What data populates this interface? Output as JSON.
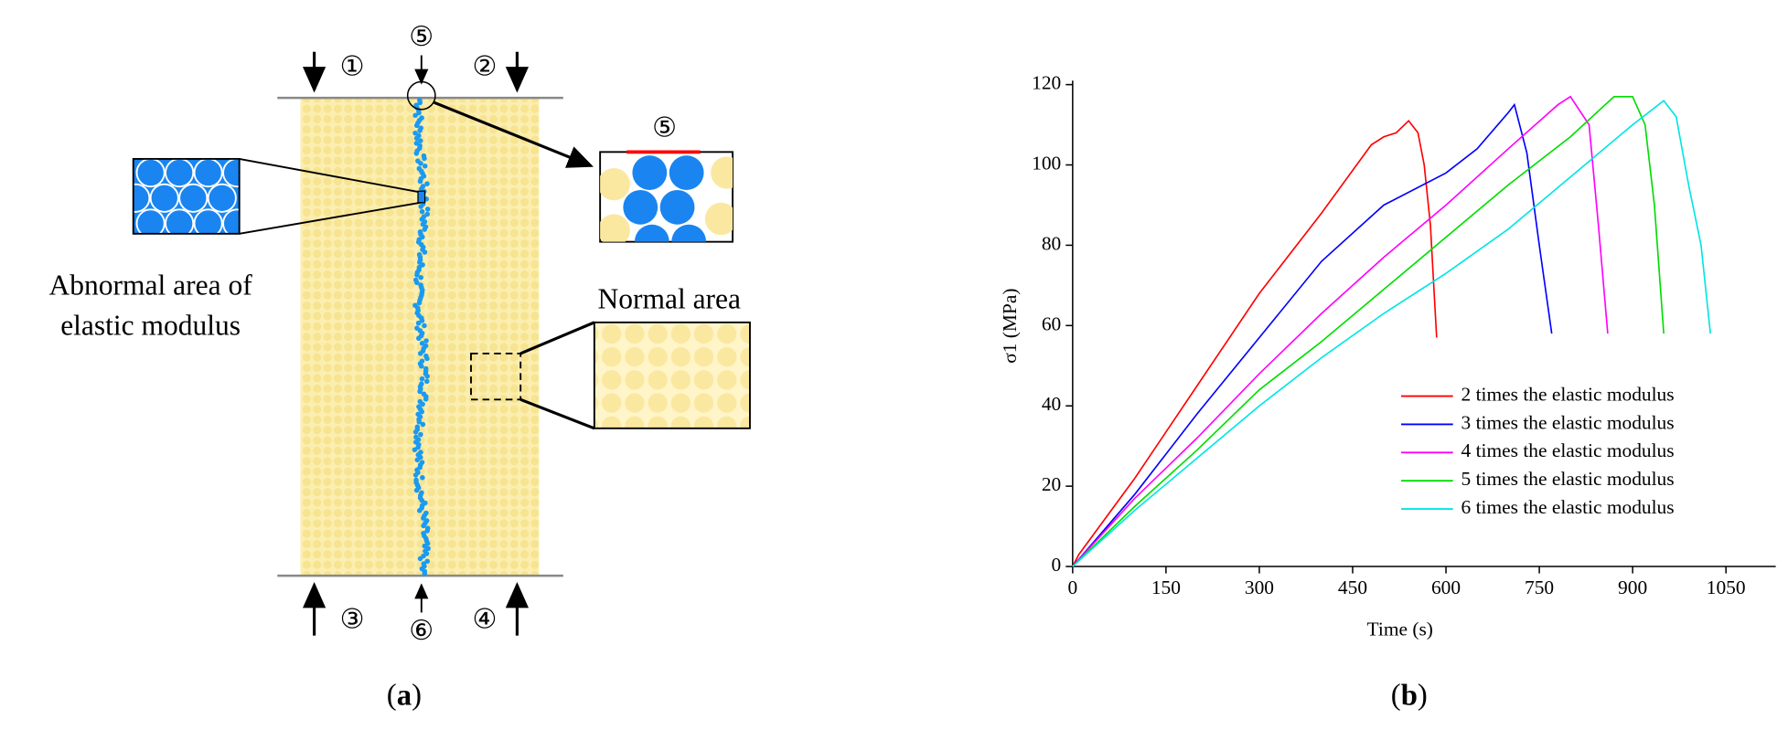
{
  "diagram": {
    "labels": {
      "one": "①",
      "two": "②",
      "three": "③",
      "four": "④",
      "five": "⑤",
      "six": "⑥",
      "five_inset": "⑤"
    },
    "abnormal_line1": "Abnormal area of",
    "abnormal_line2": "elastic modulus",
    "normal": "Normal area",
    "panel_a": "a",
    "panel_b": "b"
  },
  "chart_data": {
    "type": "line",
    "xlabel": "Time (s)",
    "ylabel": "σ1 (MPa)",
    "xlim": [
      0,
      1130
    ],
    "ylim": [
      0,
      121
    ],
    "xticks": [
      0,
      150,
      300,
      450,
      600,
      750,
      900,
      1050
    ],
    "yticks": [
      0,
      20,
      40,
      60,
      80,
      100,
      120
    ],
    "legend": "lower right",
    "series": [
      {
        "name": "2 times the elastic modulus",
        "color": "#ff0000",
        "x": [
          0,
          10,
          100,
          200,
          300,
          400,
          480,
          500,
          520,
          540,
          555,
          565,
          575,
          585
        ],
        "values": [
          0,
          3,
          22,
          45,
          68,
          88,
          105,
          107,
          108,
          111,
          108,
          100,
          85,
          57
        ]
      },
      {
        "name": "3 times the elastic modulus",
        "color": "#0000ff",
        "x": [
          0,
          100,
          200,
          300,
          400,
          500,
          600,
          650,
          700,
          710,
          730,
          750,
          770
        ],
        "values": [
          0,
          18,
          38,
          57,
          76,
          90,
          98,
          104,
          113,
          115,
          103,
          80,
          58
        ]
      },
      {
        "name": "4 times the elastic modulus",
        "color": "#ff00ff",
        "x": [
          0,
          100,
          200,
          300,
          400,
          500,
          600,
          700,
          780,
          800,
          830,
          845,
          860
        ],
        "values": [
          0,
          17,
          32,
          48,
          63,
          77,
          90,
          104,
          115,
          117,
          110,
          85,
          58
        ]
      },
      {
        "name": "5 times the elastic modulus",
        "color": "#00dd00",
        "x": [
          0,
          100,
          200,
          300,
          400,
          500,
          600,
          700,
          800,
          870,
          900,
          920,
          935,
          950
        ],
        "values": [
          0,
          15,
          29,
          44,
          56,
          69,
          82,
          95,
          107,
          117,
          117,
          110,
          90,
          58
        ]
      },
      {
        "name": "6 times the elastic modulus",
        "color": "#00e5e5",
        "x": [
          0,
          100,
          200,
          300,
          400,
          500,
          600,
          700,
          800,
          900,
          950,
          970,
          990,
          1010,
          1025
        ],
        "values": [
          0,
          14,
          27,
          40,
          52,
          63,
          73,
          84,
          97,
          110,
          116,
          112,
          95,
          80,
          58
        ]
      }
    ]
  }
}
